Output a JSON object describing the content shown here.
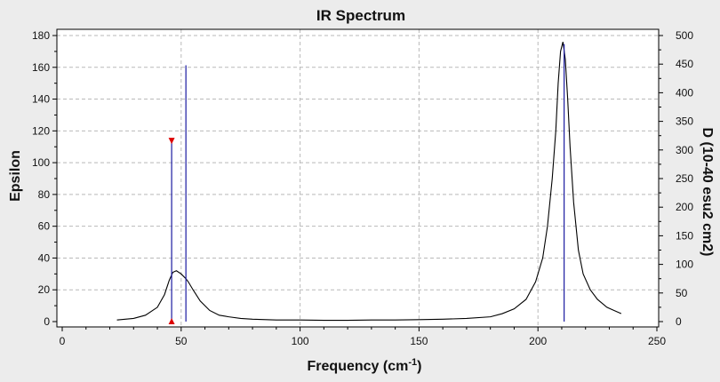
{
  "chart_data": {
    "type": "line",
    "title": "IR Spectrum",
    "xlabel_main": "Frequency (cm",
    "xlabel_sup": "-1",
    "xlabel_end": ")",
    "ylabel_left": "Epsilon",
    "ylabel_right": "D (10-40 esu2 cm2)",
    "xlim": [
      0,
      250
    ],
    "ylim_left": [
      0,
      180
    ],
    "ylim_right": [
      0,
      500
    ],
    "grid": true,
    "x_ticks": [
      0,
      50,
      100,
      150,
      200,
      250
    ],
    "y_left_ticks": [
      0,
      20,
      40,
      60,
      80,
      100,
      120,
      140,
      160,
      180
    ],
    "y_right_ticks": [
      0,
      50,
      100,
      150,
      200,
      250,
      300,
      350,
      400,
      450,
      500
    ],
    "series": [
      {
        "axis": "left",
        "x": [
          23,
          30,
          35,
          40,
          43,
          45,
          46.5,
          48,
          50,
          52,
          53,
          55,
          58,
          62,
          66,
          70,
          75,
          80,
          90,
          100,
          110,
          120,
          130,
          140,
          150,
          160,
          170,
          180,
          185,
          190,
          195,
          199,
          202,
          204,
          206,
          207.5,
          208.5,
          209.5,
          210.5,
          211.5,
          212.5,
          213.5,
          215,
          217,
          219,
          222,
          225,
          229,
          232,
          235
        ],
        "y": [
          1,
          2,
          4,
          9,
          17,
          26,
          31,
          32,
          30,
          27,
          25,
          20,
          13,
          7,
          4,
          3,
          2,
          1.5,
          1,
          1,
          0.8,
          0.8,
          1,
          1,
          1.2,
          1.5,
          2,
          3,
          5,
          8,
          14,
          25,
          40,
          60,
          90,
          120,
          150,
          170,
          176,
          165,
          140,
          110,
          75,
          45,
          30,
          20,
          14,
          9,
          7,
          5
        ]
      }
    ],
    "sticks": {
      "axis": "right",
      "x": [
        46,
        52,
        211
      ],
      "d": [
        318,
        448,
        485
      ]
    },
    "marker": {
      "x": 46,
      "y_top": 114,
      "y_bottom": 0,
      "color": "#dd0000"
    },
    "colors": {
      "curve": "#000000",
      "sticks": "#1a1aa0",
      "plot_bg": "#ffffff",
      "window_bg": "#ececec",
      "grid": "#b9b9b9"
    }
  }
}
